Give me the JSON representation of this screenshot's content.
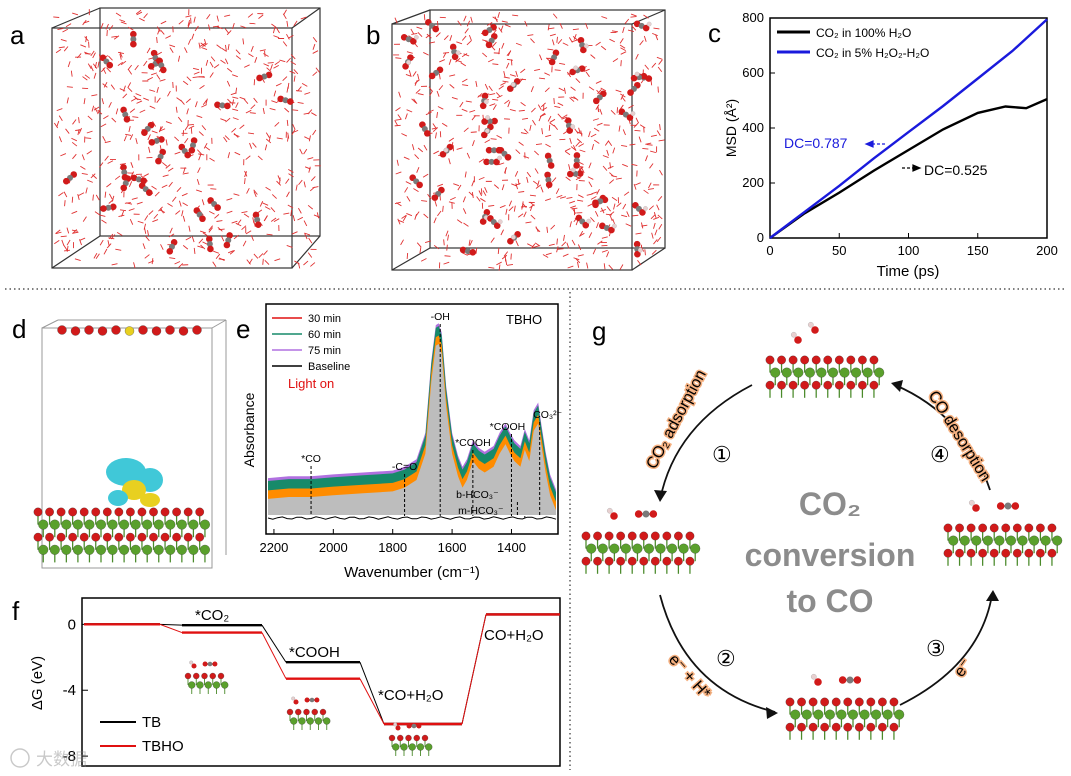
{
  "panels": {
    "a": "a",
    "b": "b",
    "c": "c",
    "d": "d",
    "e": "e",
    "f": "f",
    "g": "g"
  },
  "colors": {
    "black": "#000000",
    "blue": "#1a1adc",
    "red": "#e01010",
    "green": "#178a6a",
    "purple": "#b070e0",
    "orange": "#ff8c00",
    "gray": "#bdbdbd",
    "water": "#e03030",
    "oxygen": "#d11a1a",
    "carbon": "#7a7a7a",
    "hydrogen": "#e8d0d0",
    "mg": "#5aa02c",
    "cyan": "#40c8d8",
    "yellow": "#e8d020",
    "text_gray": "#8c8c8c",
    "highlight": "#f4b080"
  },
  "chart_data": [
    {
      "panel": "c",
      "type": "line",
      "xlabel": "Time (ps)",
      "ylabel": "MSD (Å²)",
      "xlim": [
        0,
        200
      ],
      "ylim": [
        0,
        800
      ],
      "xticks": [
        "0",
        "50",
        "100",
        "150",
        "200"
      ],
      "yticks": [
        "0",
        "200",
        "400",
        "600",
        "800"
      ],
      "series": [
        {
          "name": "CO₂ in 100% H₂O",
          "color": "#000000",
          "x": [
            0,
            25,
            50,
            75,
            100,
            125,
            150,
            170,
            185,
            200
          ],
          "y": [
            0,
            90,
            165,
            245,
            320,
            395,
            455,
            478,
            472,
            505
          ]
        },
        {
          "name": "CO₂ in 5% H₂O₂-H₂O",
          "color": "#1a1adc",
          "x": [
            0,
            25,
            50,
            75,
            100,
            125,
            150,
            175,
            200
          ],
          "y": [
            0,
            95,
            190,
            290,
            385,
            480,
            580,
            680,
            795
          ]
        }
      ],
      "annotations": [
        {
          "text": "DC=0.787",
          "color": "#1a1adc"
        },
        {
          "text": "DC=0.525",
          "color": "#000000"
        }
      ]
    },
    {
      "panel": "e",
      "type": "area",
      "title": "TBHO",
      "xlabel": "Wavenumber (cm⁻¹)",
      "ylabel": "Absorbance",
      "xlim": [
        2220,
        1250
      ],
      "xticks": [
        "2200",
        "2000",
        "1800",
        "1600",
        "1400"
      ],
      "legend": [
        "30 min",
        "60 min",
        "75 min",
        "Baseline"
      ],
      "status": "Light on",
      "peaks": [
        {
          "label": "*CO",
          "wavenumber": 2075
        },
        {
          "label": "-C=O",
          "wavenumber": 1760
        },
        {
          "label": "-OH",
          "wavenumber": 1640
        },
        {
          "label": "*COOH",
          "wavenumber": 1530
        },
        {
          "label": "*COOH",
          "wavenumber": 1400
        },
        {
          "label": "b-HCO₃⁻",
          "wavenumber": 1380
        },
        {
          "label": "m-HCO₃⁻",
          "wavenumber": 1355
        },
        {
          "label": "CO₃²⁻",
          "wavenumber": 1305
        }
      ],
      "x": [
        2220,
        2150,
        2075,
        2000,
        1900,
        1800,
        1760,
        1720,
        1690,
        1670,
        1655,
        1645,
        1635,
        1620,
        1600,
        1580,
        1565,
        1550,
        1530,
        1510,
        1490,
        1460,
        1440,
        1420,
        1405,
        1390,
        1370,
        1355,
        1340,
        1325,
        1310,
        1300,
        1285,
        1270,
        1250
      ],
      "y": [
        0.16,
        0.17,
        0.17,
        0.18,
        0.19,
        0.2,
        0.22,
        0.26,
        0.4,
        0.78,
        0.97,
        0.98,
        0.93,
        0.65,
        0.4,
        0.28,
        0.22,
        0.26,
        0.36,
        0.32,
        0.3,
        0.33,
        0.4,
        0.45,
        0.4,
        0.36,
        0.33,
        0.42,
        0.36,
        0.52,
        0.56,
        0.45,
        0.3,
        0.18,
        0.1
      ]
    },
    {
      "panel": "f",
      "type": "line",
      "ylabel": "ΔG (eV)",
      "ylim": [
        -8.6,
        1.6
      ],
      "yticks": [
        "0",
        "-4",
        "-8"
      ],
      "steps": [
        "*CO₂",
        "*COOH",
        "*CO+H₂O",
        "CO+H₂O"
      ],
      "series": [
        {
          "name": "TB",
          "color": "#000000",
          "levels": [
            0,
            -0.05,
            -2.3,
            -6.05,
            0.6
          ]
        },
        {
          "name": "TBHO",
          "color": "#e01010",
          "levels": [
            0,
            -0.5,
            -3.3,
            -6.05,
            0.6
          ]
        }
      ]
    }
  ],
  "panel_a": {},
  "panel_b": {},
  "panel_c": {
    "legend": [
      "CO₂ in 100% H₂O",
      "CO₂ in 5% H₂O₂-H₂O"
    ],
    "dc_blue": "DC=0.787",
    "dc_black": "DC=0.525"
  },
  "panel_f": {
    "labels": [
      "*CO₂",
      "*COOH",
      "*CO+H₂O",
      "CO+H₂O"
    ],
    "legend": [
      "TB",
      "TBHO"
    ]
  },
  "panel_g": {
    "center_line1": "CO₂",
    "center_line2": "conversion",
    "center_line3": "to CO",
    "step1_label": "CO₂ adsorption",
    "step2_label": "e⁻ + H*",
    "step3_label": "e⁻",
    "step4_label": "CO desorption",
    "num1": "①",
    "num2": "②",
    "num3": "③",
    "num4": "④"
  },
  "watermark": "大数据"
}
